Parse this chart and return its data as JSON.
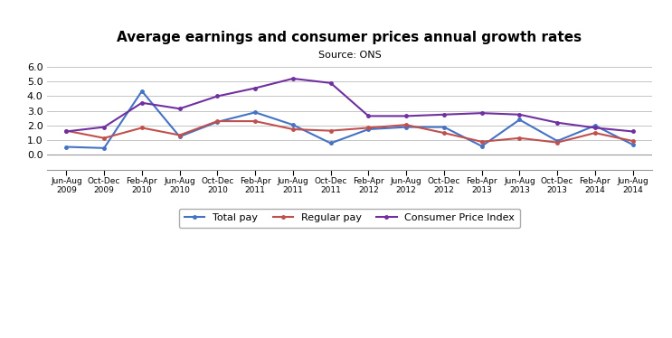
{
  "title": "Average earnings and consumer prices annual growth rates",
  "subtitle": "Source: ONS",
  "ylim": [
    -1.0,
    6.2
  ],
  "yticks": [
    0.0,
    1.0,
    2.0,
    3.0,
    4.0,
    5.0,
    6.0
  ],
  "x_labels": [
    "Jun-Aug\n2009",
    "Oct-Dec\n2009",
    "Feb-Apr\n2010",
    "Jun-Aug\n2010",
    "Oct-Dec\n2010",
    "Feb-Apr\n2011",
    "Jun-Aug\n2011",
    "Oct-Dec\n2011",
    "Feb-Apr\n2012",
    "Jun-Aug\n2012",
    "Oct-Dec\n2012",
    "Feb-Apr\n2013",
    "Jun-Aug\n2013",
    "Oct-Dec\n2013",
    "Feb-Apr\n2014",
    "Jun-Aug\n2014"
  ],
  "total_pay": [
    0.55,
    0.47,
    4.35,
    1.25,
    2.25,
    2.9,
    2.05,
    0.8,
    1.75,
    1.9,
    1.9,
    0.6,
    2.4,
    0.95,
    2.0,
    0.7
  ],
  "regular_pay": [
    1.65,
    1.15,
    1.85,
    1.35,
    2.3,
    2.3,
    1.75,
    1.65,
    1.85,
    2.05,
    1.5,
    0.9,
    1.15,
    0.85,
    1.5,
    0.95
  ],
  "cpi": [
    1.6,
    1.9,
    3.55,
    3.15,
    4.0,
    4.55,
    5.2,
    4.9,
    2.65,
    2.65,
    2.75,
    2.85,
    2.75,
    2.2,
    1.85,
    1.6
  ],
  "total_pay_color": "#4472C4",
  "regular_pay_color": "#C0504D",
  "cpi_color": "#7030A0",
  "background_color": "#FFFFFF",
  "grid_color": "#BBBBBB",
  "line_width": 1.5,
  "legend_labels": [
    "Total pay",
    "Regular pay",
    "Consumer Price Index"
  ]
}
